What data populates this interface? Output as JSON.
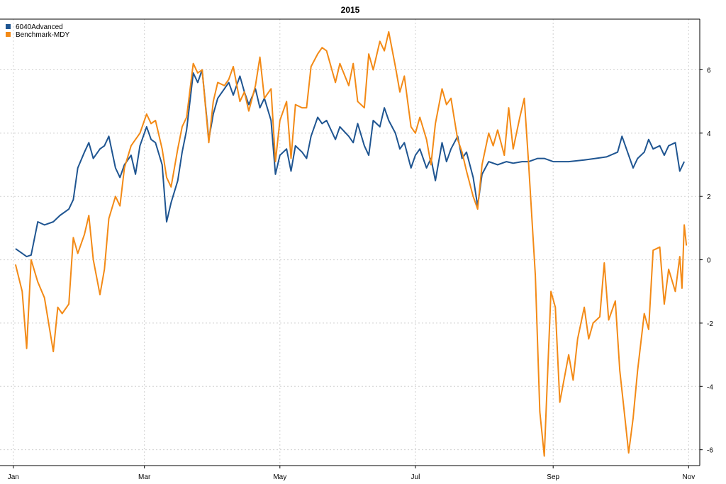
{
  "chart_data": {
    "type": "line",
    "title": "2015",
    "xlabel": "",
    "ylabel": "",
    "ylim": [
      -6.5,
      7.6
    ],
    "x_tick_labels": [
      "Jan",
      "Mar",
      "May",
      "Jul",
      "Sep",
      "Nov"
    ],
    "x_tick_dates": [
      "2015-01-01",
      "2015-03-01",
      "2015-05-01",
      "2015-07-01",
      "2015-09-01",
      "2015-11-01"
    ],
    "xlim": [
      "2014-12-26",
      "2015-11-06"
    ],
    "y_ticks": [
      -6,
      -4,
      -2,
      0,
      2,
      4,
      6
    ],
    "y_tick_side": "right",
    "grid": true,
    "legend": {
      "position": "top-left"
    },
    "series": [
      {
        "name": "6040Advanced",
        "color": "#1f5591",
        "points": [
          [
            "2015-01-02",
            0.35
          ],
          [
            "2015-01-05",
            0.2
          ],
          [
            "2015-01-07",
            0.1
          ],
          [
            "2015-01-09",
            0.15
          ],
          [
            "2015-01-12",
            1.2
          ],
          [
            "2015-01-15",
            1.1
          ],
          [
            "2015-01-19",
            1.2
          ],
          [
            "2015-01-22",
            1.4
          ],
          [
            "2015-01-26",
            1.6
          ],
          [
            "2015-01-28",
            1.9
          ],
          [
            "2015-01-30",
            2.9
          ],
          [
            "2015-02-02",
            3.4
          ],
          [
            "2015-02-04",
            3.7
          ],
          [
            "2015-02-06",
            3.2
          ],
          [
            "2015-02-09",
            3.5
          ],
          [
            "2015-02-11",
            3.6
          ],
          [
            "2015-02-13",
            3.9
          ],
          [
            "2015-02-16",
            2.9
          ],
          [
            "2015-02-18",
            2.6
          ],
          [
            "2015-02-20",
            3.0
          ],
          [
            "2015-02-23",
            3.3
          ],
          [
            "2015-02-25",
            2.7
          ],
          [
            "2015-02-27",
            3.6
          ],
          [
            "2015-03-02",
            4.2
          ],
          [
            "2015-03-04",
            3.8
          ],
          [
            "2015-03-06",
            3.7
          ],
          [
            "2015-03-09",
            3.0
          ],
          [
            "2015-03-11",
            1.2
          ],
          [
            "2015-03-13",
            1.8
          ],
          [
            "2015-03-16",
            2.5
          ],
          [
            "2015-03-18",
            3.4
          ],
          [
            "2015-03-20",
            4.1
          ],
          [
            "2015-03-23",
            5.9
          ],
          [
            "2015-03-25",
            5.6
          ],
          [
            "2015-03-27",
            6.0
          ],
          [
            "2015-03-30",
            3.8
          ],
          [
            "2015-04-01",
            4.6
          ],
          [
            "2015-04-03",
            5.1
          ],
          [
            "2015-04-06",
            5.4
          ],
          [
            "2015-04-08",
            5.6
          ],
          [
            "2015-04-10",
            5.2
          ],
          [
            "2015-04-13",
            5.8
          ],
          [
            "2015-04-15",
            5.3
          ],
          [
            "2015-04-17",
            4.9
          ],
          [
            "2015-04-20",
            5.4
          ],
          [
            "2015-04-22",
            4.8
          ],
          [
            "2015-04-24",
            5.1
          ],
          [
            "2015-04-27",
            4.4
          ],
          [
            "2015-04-29",
            2.7
          ],
          [
            "2015-05-01",
            3.3
          ],
          [
            "2015-05-04",
            3.5
          ],
          [
            "2015-05-06",
            2.8
          ],
          [
            "2015-05-08",
            3.6
          ],
          [
            "2015-05-11",
            3.4
          ],
          [
            "2015-05-13",
            3.2
          ],
          [
            "2015-05-15",
            3.9
          ],
          [
            "2015-05-18",
            4.5
          ],
          [
            "2015-05-20",
            4.3
          ],
          [
            "2015-05-22",
            4.4
          ],
          [
            "2015-05-26",
            3.8
          ],
          [
            "2015-05-28",
            4.2
          ],
          [
            "2015-06-01",
            3.9
          ],
          [
            "2015-06-03",
            3.7
          ],
          [
            "2015-06-05",
            4.3
          ],
          [
            "2015-06-08",
            3.6
          ],
          [
            "2015-06-10",
            3.3
          ],
          [
            "2015-06-12",
            4.4
          ],
          [
            "2015-06-15",
            4.2
          ],
          [
            "2015-06-17",
            4.8
          ],
          [
            "2015-06-19",
            4.4
          ],
          [
            "2015-06-22",
            4.0
          ],
          [
            "2015-06-24",
            3.5
          ],
          [
            "2015-06-26",
            3.7
          ],
          [
            "2015-06-29",
            2.9
          ],
          [
            "2015-07-01",
            3.3
          ],
          [
            "2015-07-03",
            3.5
          ],
          [
            "2015-07-06",
            2.9
          ],
          [
            "2015-07-08",
            3.2
          ],
          [
            "2015-07-10",
            2.5
          ],
          [
            "2015-07-13",
            3.7
          ],
          [
            "2015-07-15",
            3.1
          ],
          [
            "2015-07-17",
            3.5
          ],
          [
            "2015-07-20",
            3.9
          ],
          [
            "2015-07-22",
            3.2
          ],
          [
            "2015-07-24",
            3.4
          ],
          [
            "2015-07-27",
            2.6
          ],
          [
            "2015-07-29",
            1.7
          ],
          [
            "2015-07-31",
            2.7
          ],
          [
            "2015-08-03",
            3.1
          ],
          [
            "2015-08-07",
            3.0
          ],
          [
            "2015-08-11",
            3.1
          ],
          [
            "2015-08-14",
            3.05
          ],
          [
            "2015-08-18",
            3.1
          ],
          [
            "2015-08-21",
            3.1
          ],
          [
            "2015-08-25",
            3.2
          ],
          [
            "2015-08-28",
            3.2
          ],
          [
            "2015-09-01",
            3.1
          ],
          [
            "2015-09-08",
            3.1
          ],
          [
            "2015-09-15",
            3.15
          ],
          [
            "2015-09-20",
            3.2
          ],
          [
            "2015-09-25",
            3.25
          ],
          [
            "2015-09-30",
            3.4
          ],
          [
            "2015-10-02",
            3.9
          ],
          [
            "2015-10-05",
            3.3
          ],
          [
            "2015-10-07",
            2.9
          ],
          [
            "2015-10-09",
            3.2
          ],
          [
            "2015-10-12",
            3.4
          ],
          [
            "2015-10-14",
            3.8
          ],
          [
            "2015-10-16",
            3.5
          ],
          [
            "2015-10-19",
            3.6
          ],
          [
            "2015-10-21",
            3.3
          ],
          [
            "2015-10-23",
            3.6
          ],
          [
            "2015-10-26",
            3.7
          ],
          [
            "2015-10-28",
            2.8
          ],
          [
            "2015-10-30",
            3.1
          ]
        ]
      },
      {
        "name": "Benchmark-MDY",
        "color": "#f38a16",
        "points": [
          [
            "2015-01-02",
            -0.15
          ],
          [
            "2015-01-05",
            -1.0
          ],
          [
            "2015-01-07",
            -2.8
          ],
          [
            "2015-01-09",
            0.0
          ],
          [
            "2015-01-12",
            -0.7
          ],
          [
            "2015-01-15",
            -1.2
          ],
          [
            "2015-01-19",
            -2.9
          ],
          [
            "2015-01-21",
            -1.5
          ],
          [
            "2015-01-23",
            -1.7
          ],
          [
            "2015-01-26",
            -1.4
          ],
          [
            "2015-01-28",
            0.7
          ],
          [
            "2015-01-30",
            0.2
          ],
          [
            "2015-02-02",
            0.8
          ],
          [
            "2015-02-04",
            1.4
          ],
          [
            "2015-02-06",
            0.0
          ],
          [
            "2015-02-09",
            -1.1
          ],
          [
            "2015-02-11",
            -0.3
          ],
          [
            "2015-02-13",
            1.3
          ],
          [
            "2015-02-16",
            2.0
          ],
          [
            "2015-02-18",
            1.7
          ],
          [
            "2015-02-20",
            2.9
          ],
          [
            "2015-02-23",
            3.6
          ],
          [
            "2015-02-25",
            3.8
          ],
          [
            "2015-02-27",
            4.0
          ],
          [
            "2015-03-02",
            4.6
          ],
          [
            "2015-03-04",
            4.3
          ],
          [
            "2015-03-06",
            4.4
          ],
          [
            "2015-03-09",
            3.5
          ],
          [
            "2015-03-11",
            2.6
          ],
          [
            "2015-03-13",
            2.3
          ],
          [
            "2015-03-16",
            3.5
          ],
          [
            "2015-03-18",
            4.2
          ],
          [
            "2015-03-20",
            4.5
          ],
          [
            "2015-03-23",
            6.2
          ],
          [
            "2015-03-25",
            5.9
          ],
          [
            "2015-03-27",
            6.0
          ],
          [
            "2015-03-30",
            3.7
          ],
          [
            "2015-04-01",
            5.0
          ],
          [
            "2015-04-03",
            5.6
          ],
          [
            "2015-04-06",
            5.5
          ],
          [
            "2015-04-08",
            5.7
          ],
          [
            "2015-04-10",
            6.1
          ],
          [
            "2015-04-13",
            5.0
          ],
          [
            "2015-04-15",
            5.3
          ],
          [
            "2015-04-17",
            4.7
          ],
          [
            "2015-04-20",
            5.5
          ],
          [
            "2015-04-22",
            6.4
          ],
          [
            "2015-04-24",
            5.1
          ],
          [
            "2015-04-27",
            5.4
          ],
          [
            "2015-04-29",
            3.1
          ],
          [
            "2015-05-01",
            4.4
          ],
          [
            "2015-05-04",
            5.0
          ],
          [
            "2015-05-06",
            3.2
          ],
          [
            "2015-05-08",
            4.9
          ],
          [
            "2015-05-11",
            4.8
          ],
          [
            "2015-05-13",
            4.8
          ],
          [
            "2015-05-15",
            6.1
          ],
          [
            "2015-05-18",
            6.5
          ],
          [
            "2015-05-20",
            6.7
          ],
          [
            "2015-05-22",
            6.6
          ],
          [
            "2015-05-26",
            5.6
          ],
          [
            "2015-05-28",
            6.2
          ],
          [
            "2015-06-01",
            5.5
          ],
          [
            "2015-06-03",
            6.2
          ],
          [
            "2015-06-05",
            5.0
          ],
          [
            "2015-06-08",
            4.8
          ],
          [
            "2015-06-10",
            6.5
          ],
          [
            "2015-06-12",
            6.0
          ],
          [
            "2015-06-15",
            6.9
          ],
          [
            "2015-06-17",
            6.6
          ],
          [
            "2015-06-19",
            7.2
          ],
          [
            "2015-06-22",
            6.1
          ],
          [
            "2015-06-24",
            5.3
          ],
          [
            "2015-06-26",
            5.8
          ],
          [
            "2015-06-29",
            4.2
          ],
          [
            "2015-07-01",
            4.0
          ],
          [
            "2015-07-03",
            4.5
          ],
          [
            "2015-07-06",
            3.8
          ],
          [
            "2015-07-08",
            3.0
          ],
          [
            "2015-07-10",
            4.3
          ],
          [
            "2015-07-13",
            5.4
          ],
          [
            "2015-07-15",
            4.9
          ],
          [
            "2015-07-17",
            5.1
          ],
          [
            "2015-07-20",
            3.8
          ],
          [
            "2015-07-22",
            3.4
          ],
          [
            "2015-07-24",
            2.8
          ],
          [
            "2015-07-27",
            2.0
          ],
          [
            "2015-07-29",
            1.6
          ],
          [
            "2015-07-31",
            3.0
          ],
          [
            "2015-08-03",
            4.0
          ],
          [
            "2015-08-05",
            3.6
          ],
          [
            "2015-08-07",
            4.1
          ],
          [
            "2015-08-10",
            3.3
          ],
          [
            "2015-08-12",
            4.8
          ],
          [
            "2015-08-14",
            3.5
          ],
          [
            "2015-08-17",
            4.5
          ],
          [
            "2015-08-19",
            5.1
          ],
          [
            "2015-08-21",
            3.0
          ],
          [
            "2015-08-24",
            -0.5
          ],
          [
            "2015-08-26",
            -4.8
          ],
          [
            "2015-08-28",
            -6.2
          ],
          [
            "2015-08-31",
            -1.0
          ],
          [
            "2015-09-02",
            -1.5
          ],
          [
            "2015-09-04",
            -4.5
          ],
          [
            "2015-09-08",
            -3.0
          ],
          [
            "2015-09-10",
            -3.8
          ],
          [
            "2015-09-12",
            -2.5
          ],
          [
            "2015-09-15",
            -1.5
          ],
          [
            "2015-09-17",
            -2.5
          ],
          [
            "2015-09-19",
            -2.0
          ],
          [
            "2015-09-22",
            -1.8
          ],
          [
            "2015-09-24",
            -0.1
          ],
          [
            "2015-09-26",
            -1.9
          ],
          [
            "2015-09-29",
            -1.3
          ],
          [
            "2015-10-01",
            -3.5
          ],
          [
            "2015-10-03",
            -4.8
          ],
          [
            "2015-10-05",
            -6.1
          ],
          [
            "2015-10-07",
            -5.0
          ],
          [
            "2015-10-09",
            -3.5
          ],
          [
            "2015-10-12",
            -1.7
          ],
          [
            "2015-10-14",
            -2.2
          ],
          [
            "2015-10-16",
            0.3
          ],
          [
            "2015-10-19",
            0.4
          ],
          [
            "2015-10-21",
            -1.4
          ],
          [
            "2015-10-23",
            -0.3
          ],
          [
            "2015-10-26",
            -1.0
          ],
          [
            "2015-10-28",
            0.1
          ],
          [
            "2015-10-29",
            -0.9
          ],
          [
            "2015-10-30",
            1.1
          ],
          [
            "2015-10-31",
            0.45
          ]
        ]
      }
    ]
  }
}
